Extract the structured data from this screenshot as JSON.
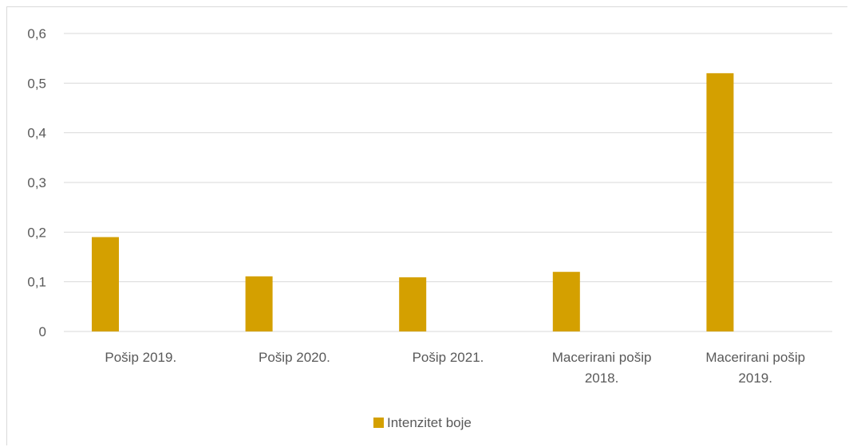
{
  "chart_data": {
    "type": "bar",
    "categories": [
      [
        "Pošip 2019."
      ],
      [
        "Pošip 2020."
      ],
      [
        "Pošip 2021."
      ],
      [
        "Macerirani pošip",
        "2018."
      ],
      [
        "Macerirani pošip",
        "2019."
      ]
    ],
    "series": [
      {
        "name": "Intenzitet boje",
        "values": [
          0.19,
          0.111,
          0.109,
          0.12,
          0.52
        ],
        "color": "#d4a000"
      }
    ],
    "ylim": [
      0,
      0.6
    ],
    "yticks": [
      "0",
      "0,1",
      "0,2",
      "0,3",
      "0,4",
      "0,5",
      "0,6"
    ],
    "grid": true,
    "legend_position": "bottom"
  }
}
